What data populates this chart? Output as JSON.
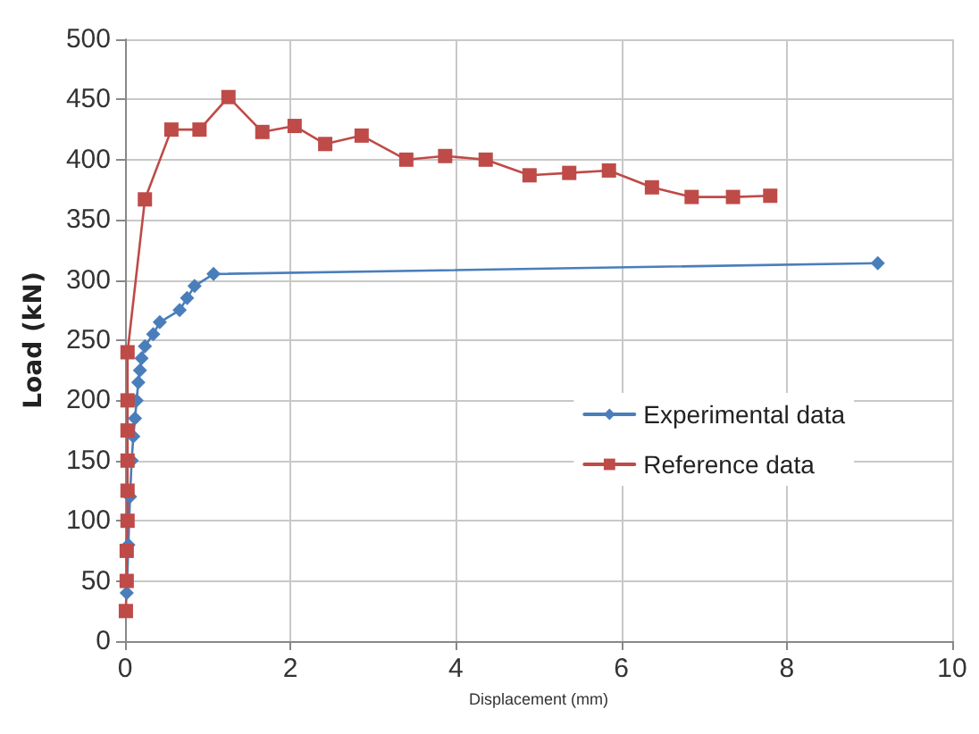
{
  "chart_data": {
    "type": "line",
    "xlabel": "Displacement (mm)",
    "ylabel": "Load (kN)",
    "xlim": [
      0,
      10
    ],
    "xticks": [
      0,
      2,
      4,
      6,
      8,
      10
    ],
    "ylim": [
      0,
      500
    ],
    "yticks": [
      0,
      50,
      100,
      150,
      200,
      250,
      300,
      350,
      400,
      450,
      500
    ],
    "grid": true,
    "legend": "right",
    "line_style": "solid",
    "series": [
      {
        "name": "Experimental data",
        "color": "#4a7ebb",
        "marker": "diamond",
        "x": [
          0.02,
          0.04,
          0.06,
          0.08,
          0.1,
          0.12,
          0.14,
          0.16,
          0.18,
          0.2,
          0.24,
          0.34,
          0.42,
          0.66,
          0.75,
          0.84,
          1.07,
          9.1
        ],
        "values": [
          40,
          80,
          120,
          150,
          170,
          185,
          200,
          215,
          225,
          235,
          245,
          255,
          265,
          275,
          285,
          295,
          305,
          314
        ]
      },
      {
        "name": "Reference data",
        "color": "#be4b48",
        "marker": "square",
        "x": [
          0.01,
          0.02,
          0.02,
          0.03,
          0.03,
          0.03,
          0.03,
          0.03,
          0.03,
          0.24,
          0.56,
          0.9,
          1.25,
          1.66,
          2.05,
          2.42,
          2.86,
          3.4,
          3.87,
          4.36,
          4.89,
          5.37,
          5.85,
          6.37,
          6.85,
          7.35,
          7.8
        ],
        "values": [
          25,
          50,
          75,
          100,
          125,
          150,
          175,
          200,
          240,
          367,
          425,
          425,
          452,
          423,
          428,
          413,
          420,
          400,
          403,
          400,
          387,
          389,
          391,
          377,
          369,
          369,
          370
        ]
      }
    ]
  }
}
